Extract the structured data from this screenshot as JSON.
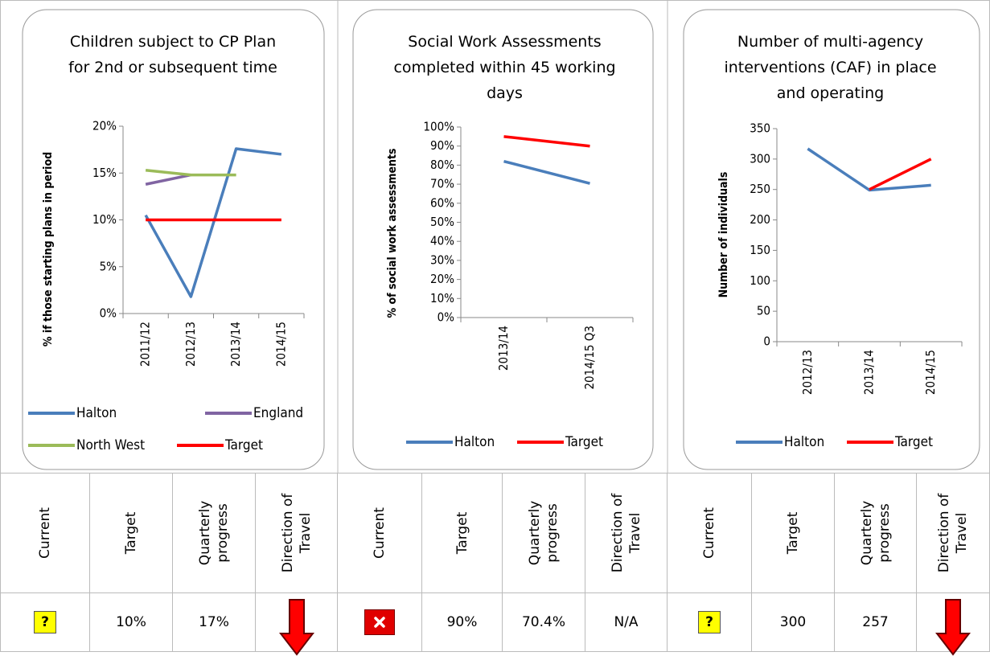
{
  "chart_data": [
    {
      "type": "line",
      "title": "Children subject to CP Plan for 2nd or subsequent time",
      "y_label": "% if those starting plans in period",
      "categories": [
        "2011/12",
        "2012/13",
        "2013/14",
        "2014/15"
      ],
      "series": [
        {
          "name": "Halton",
          "color": "#4a7ebb",
          "values": [
            10.5,
            1.8,
            17.6,
            17.0
          ]
        },
        {
          "name": "England",
          "color": "#8064a2",
          "values": [
            13.8,
            14.8,
            null,
            null
          ]
        },
        {
          "name": "North West",
          "color": "#9bbb59",
          "values": [
            15.3,
            14.8,
            14.8,
            null
          ]
        },
        {
          "name": "Target",
          "color": "#ff0000",
          "values": [
            10,
            10,
            10,
            10
          ]
        }
      ],
      "ylim": [
        0,
        20
      ],
      "yticks": [
        {
          "value": 0,
          "label": "0%"
        },
        {
          "value": 5,
          "label": "5%"
        },
        {
          "value": 10,
          "label": "10%"
        },
        {
          "value": 15,
          "label": "15%"
        },
        {
          "value": 20,
          "label": "20%"
        }
      ],
      "grid": false,
      "legend": "bottom"
    },
    {
      "type": "line",
      "title": "Social Work Assessments completed within 45 working days",
      "y_label": "% of social work assessments",
      "categories": [
        "2013/14",
        "2014/15 Q3"
      ],
      "series": [
        {
          "name": "Halton",
          "color": "#4a7ebb",
          "values": [
            82,
            70.4
          ]
        },
        {
          "name": "Target",
          "color": "#ff0000",
          "values": [
            95,
            90
          ]
        }
      ],
      "ylim": [
        0,
        100
      ],
      "yticks": [
        {
          "value": 0,
          "label": "0%"
        },
        {
          "value": 10,
          "label": "10%"
        },
        {
          "value": 20,
          "label": "20%"
        },
        {
          "value": 30,
          "label": "30%"
        },
        {
          "value": 40,
          "label": "40%"
        },
        {
          "value": 50,
          "label": "50%"
        },
        {
          "value": 60,
          "label": "60%"
        },
        {
          "value": 70,
          "label": "70%"
        },
        {
          "value": 80,
          "label": "80%"
        },
        {
          "value": 90,
          "label": "90%"
        },
        {
          "value": 100,
          "label": "100%"
        }
      ],
      "grid": false,
      "legend": "bottom"
    },
    {
      "type": "line",
      "title": "Number of multi-agency interventions (CAF) in place and operating",
      "y_label": "Number of individuals",
      "categories": [
        "2012/13",
        "2013/14",
        "2014/15"
      ],
      "series": [
        {
          "name": "Halton",
          "color": "#4a7ebb",
          "values": [
            317,
            249,
            257
          ]
        },
        {
          "name": "Target",
          "color": "#ff0000",
          "values": [
            null,
            250,
            300
          ]
        }
      ],
      "ylim": [
        0,
        350
      ],
      "yticks": [
        0,
        50,
        100,
        150,
        200,
        250,
        300,
        350
      ],
      "grid": false,
      "legend": "bottom"
    }
  ],
  "table": {
    "headers": [
      "Current",
      "Target",
      "Quarterly progress",
      "Direction of Travel"
    ],
    "groups": [
      {
        "current": "?",
        "target": "10%",
        "progress": "17%"
      },
      {
        "target": "90%",
        "progress": "70.4%",
        "direction": "N/A"
      },
      {
        "current": "?",
        "target": "300",
        "progress": "257"
      }
    ]
  }
}
